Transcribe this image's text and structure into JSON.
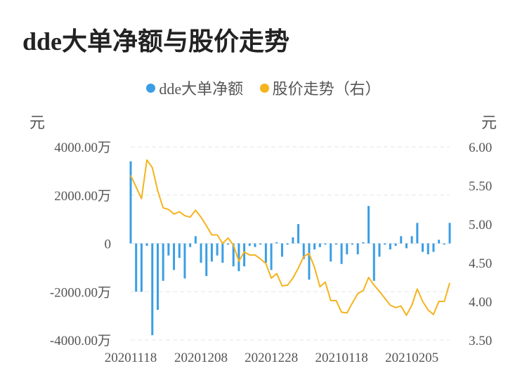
{
  "title": "dde大单净额与股价走势",
  "legend": [
    {
      "label": "dde大单净额",
      "color": "#3a9ee4"
    },
    {
      "label": "股价走势（右）",
      "color": "#f5b31d"
    }
  ],
  "chart_data": {
    "type": "bar+line",
    "title": "dde大单净额与股价走势",
    "left_unit": "元",
    "right_unit": "元",
    "left_ticks": [
      "4000.00万",
      "2000.00万",
      "0",
      "-2000.00万",
      "-4000.00万"
    ],
    "right_ticks": [
      "6.00",
      "5.50",
      "5.00",
      "4.50",
      "4.00",
      "3.50"
    ],
    "ylim_left": [
      -4000,
      4000
    ],
    "ylim_right": [
      3.5,
      6.0
    ],
    "x_tick_labels": [
      "20201118",
      "20201208",
      "20201228",
      "20210118",
      "20210205"
    ],
    "x_tick_indices": [
      0,
      13,
      26,
      39,
      52
    ],
    "grid": true,
    "legend_position": "top",
    "series": [
      {
        "name": "dde大单净额",
        "kind": "bar",
        "color": "#3a9ee4",
        "unit": "万元",
        "values": [
          3400,
          -2000,
          -2000,
          -100,
          -3800,
          -2750,
          -1550,
          -500,
          -1100,
          -600,
          -1450,
          -150,
          300,
          -800,
          -1350,
          -750,
          -500,
          -800,
          -50,
          -950,
          -1150,
          -950,
          -100,
          -150,
          -50,
          -800,
          -1100,
          50,
          -550,
          -50,
          250,
          800,
          -650,
          -1500,
          -250,
          -150,
          -50,
          -750,
          -50,
          -850,
          -450,
          -50,
          -450,
          50,
          1550,
          -1550,
          -550,
          -50,
          -250,
          -100,
          300,
          -200,
          300,
          850,
          -350,
          -450,
          -350,
          150,
          -50,
          850
        ]
      },
      {
        "name": "股价走势（右）",
        "kind": "line",
        "color": "#f5b31d",
        "unit": "元",
        "values": [
          5.63,
          5.48,
          5.33,
          5.83,
          5.73,
          5.43,
          5.21,
          5.19,
          5.13,
          5.16,
          5.11,
          5.09,
          5.18,
          5.09,
          4.98,
          4.86,
          4.86,
          4.75,
          4.82,
          4.73,
          4.52,
          4.64,
          4.6,
          4.6,
          4.55,
          4.49,
          4.3,
          4.36,
          4.2,
          4.21,
          4.3,
          4.43,
          4.58,
          4.62,
          4.44,
          4.19,
          4.25,
          4.01,
          4.01,
          3.86,
          3.85,
          3.98,
          4.1,
          4.14,
          4.31,
          4.21,
          4.13,
          4.04,
          3.95,
          3.92,
          3.94,
          3.82,
          3.95,
          4.16,
          4.0,
          3.89,
          3.83,
          4.0,
          4.0,
          4.24
        ]
      }
    ]
  }
}
